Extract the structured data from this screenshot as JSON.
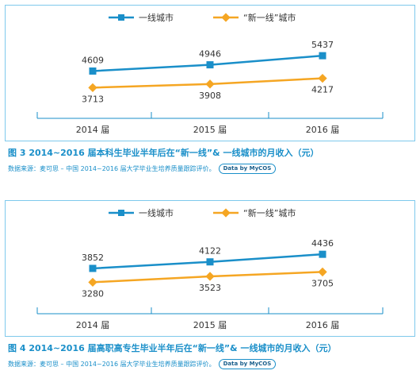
{
  "colors": {
    "tier1": "#1a8fc9",
    "newtier1": "#f5a623",
    "axis": "#1a8fc9",
    "text": "#333333"
  },
  "chart_data": [
    {
      "type": "line",
      "categories": [
        "2014 届",
        "2015 届",
        "2016 届"
      ],
      "series": [
        {
          "name": "一线城市",
          "values": [
            4609,
            4946,
            5437
          ]
        },
        {
          "name": "“新一线”城市",
          "values": [
            3713,
            3908,
            4217
          ]
        }
      ],
      "caption": "图 3  2014~2016 届本科生毕业半年后在“新一线”& 一线城市的月收入（元）",
      "source": "数据来源：麦可思 – 中国 2014~2016 届大学毕业生培养质量跟踪评价。",
      "badge": "Data by MyCOS",
      "legend_position": "top",
      "ylim": [
        3000,
        6000
      ]
    },
    {
      "type": "line",
      "categories": [
        "2014 届",
        "2015 届",
        "2016 届"
      ],
      "series": [
        {
          "name": "一线城市",
          "values": [
            3852,
            4122,
            4436
          ]
        },
        {
          "name": "“新一线”城市",
          "values": [
            3280,
            3523,
            3705
          ]
        }
      ],
      "caption": "图 4  2014~2016 届高职高专生毕业半年后在“新一线”& 一线城市的月收入（元）",
      "source": "数据来源：麦可思 – 中国 2014~2016 届大学毕业生培养质量跟踪评价。",
      "badge": "Data by MyCOS",
      "legend_position": "top",
      "ylim": [
        2700,
        5000
      ]
    }
  ]
}
